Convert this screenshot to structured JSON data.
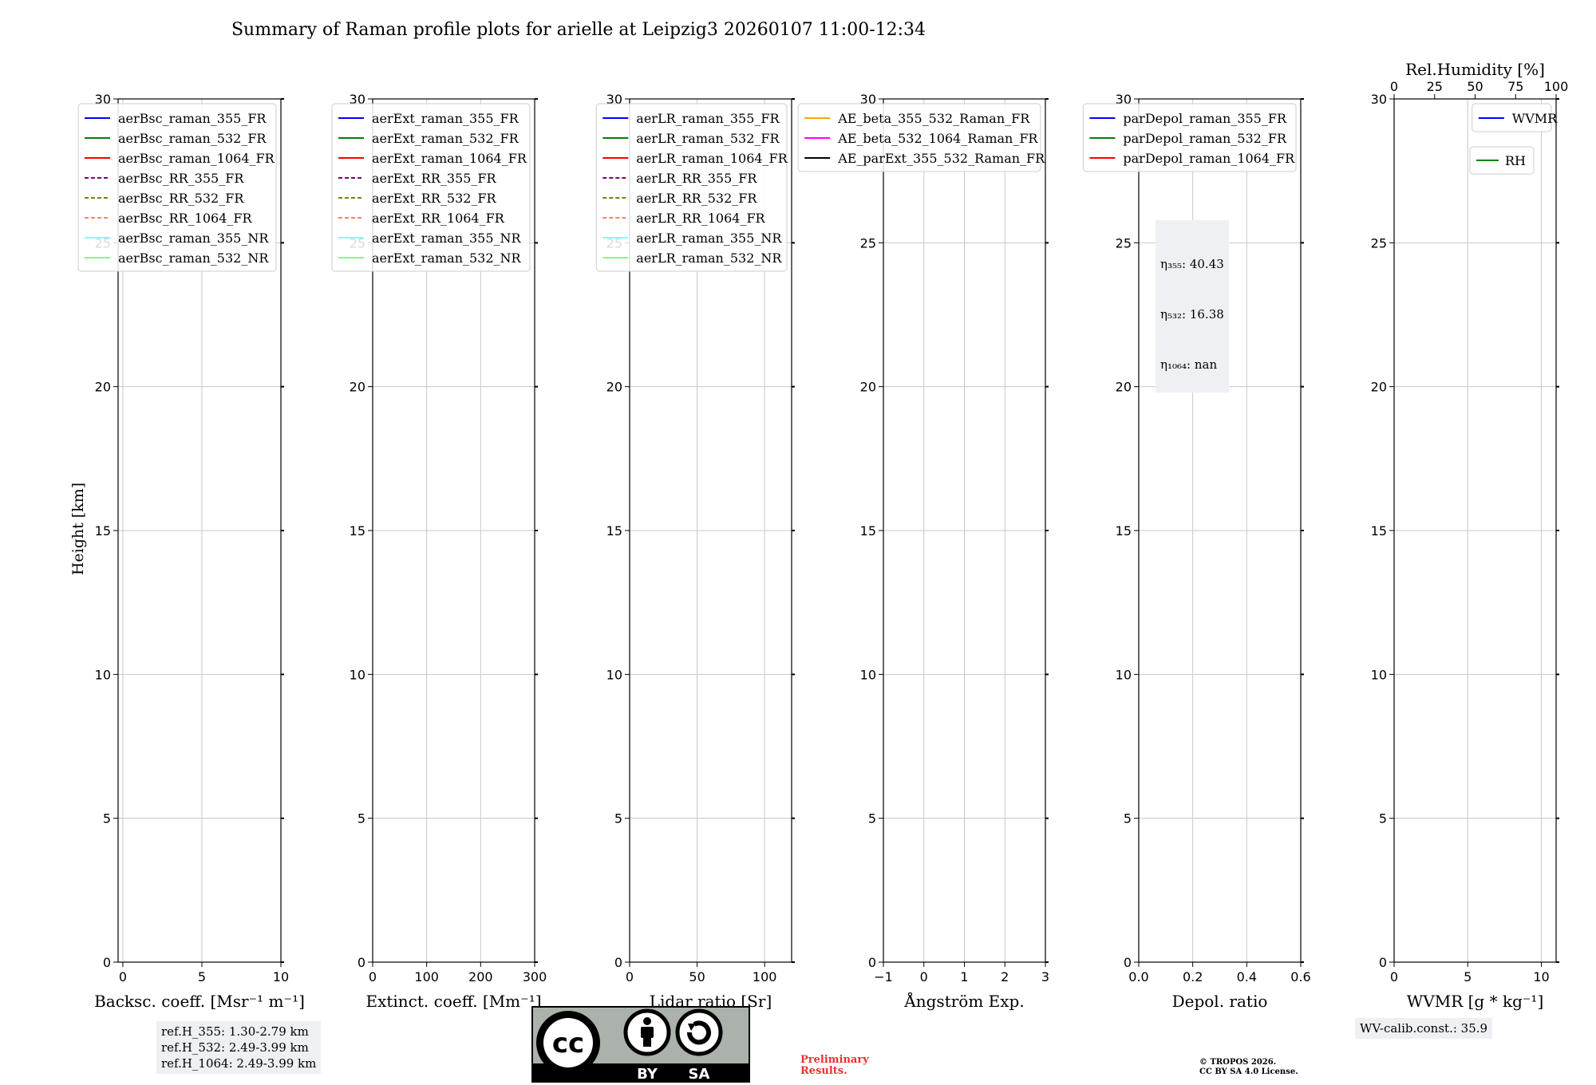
{
  "title": "Summary of Raman profile plots for arielle at Leipzig3 20260107 11:00-12:34",
  "colors": {
    "blue": "#0000ff",
    "green": "#008000",
    "red": "#ff0000",
    "purple": "#800080",
    "olive": "#808000",
    "salmon": "#fa8072",
    "cyan": "#7fffff",
    "lightgreen": "#7fff7f",
    "orange": "#ffa500",
    "magenta": "#ff00ff",
    "black": "#000000",
    "grid": "#c8c8c8"
  },
  "chart_data": [
    {
      "type": "line",
      "id": "bsc",
      "xlabel": "Backsc. coeff. [Msr⁻¹ m⁻¹]",
      "ylabel": "Height [km]",
      "xlim": [
        -0.3,
        10
      ],
      "ylim": [
        0,
        30
      ],
      "xticks": [
        0,
        5,
        10
      ],
      "yticks": [
        0,
        5,
        10,
        15,
        20,
        25,
        30
      ],
      "legend": [
        "aerBsc_raman_355_FR",
        "aerBsc_raman_532_FR",
        "aerBsc_raman_1064_FR",
        "aerBsc_RR_355_FR",
        "aerBsc_RR_532_FR",
        "aerBsc_RR_1064_FR",
        "aerBsc_raman_355_NR",
        "aerBsc_raman_532_NR"
      ],
      "legend_colors": [
        "blue",
        "green",
        "red",
        "purple",
        "olive",
        "salmon",
        "cyan",
        "lightgreen"
      ],
      "legend_dashed": [
        false,
        false,
        false,
        true,
        true,
        true,
        false,
        false
      ],
      "legend_loc": "upper-right"
    },
    {
      "type": "line",
      "id": "ext",
      "xlabel": "Extinct. coeff. [Mm⁻¹]",
      "xlim": [
        0,
        300
      ],
      "ylim": [
        0,
        30
      ],
      "xticks": [
        0,
        100,
        200,
        300
      ],
      "yticks": [
        0,
        5,
        10,
        15,
        20,
        25,
        30
      ],
      "legend": [
        "aerExt_raman_355_FR",
        "aerExt_raman_532_FR",
        "aerExt_raman_1064_FR",
        "aerExt_RR_355_FR",
        "aerExt_RR_532_FR",
        "aerExt_RR_1064_FR",
        "aerExt_raman_355_NR",
        "aerExt_raman_532_NR"
      ],
      "legend_colors": [
        "blue",
        "green",
        "red",
        "purple",
        "olive",
        "salmon",
        "cyan",
        "lightgreen"
      ],
      "legend_dashed": [
        false,
        false,
        false,
        true,
        true,
        true,
        false,
        false
      ],
      "legend_loc": "upper-right"
    },
    {
      "type": "line",
      "id": "lr",
      "xlabel": "Lidar ratio [Sr]",
      "xlim": [
        0,
        120
      ],
      "ylim": [
        0,
        30
      ],
      "xticks": [
        0,
        50,
        100
      ],
      "yticks": [
        0,
        5,
        10,
        15,
        20,
        25,
        30
      ],
      "legend": [
        "aerLR_raman_355_FR",
        "aerLR_raman_532_FR",
        "aerLR_raman_1064_FR",
        "aerLR_RR_355_FR",
        "aerLR_RR_532_FR",
        "aerLR_RR_1064_FR",
        "aerLR_raman_355_NR",
        "aerLR_raman_532_NR"
      ],
      "legend_colors": [
        "blue",
        "green",
        "red",
        "purple",
        "olive",
        "salmon",
        "cyan",
        "lightgreen"
      ],
      "legend_dashed": [
        false,
        false,
        false,
        true,
        true,
        true,
        false,
        false
      ],
      "legend_loc": "upper-right"
    },
    {
      "type": "line",
      "id": "ae",
      "xlabel": "Ångström Exp.",
      "xlim": [
        -1,
        3
      ],
      "ylim": [
        0,
        30
      ],
      "xticks": [
        -1,
        0,
        1,
        2,
        3
      ],
      "yticks": [
        0,
        5,
        10,
        15,
        20,
        25,
        30
      ],
      "legend": [
        "AE_beta_355_532_Raman_FR",
        "AE_beta_532_1064_Raman_FR",
        "AE_parExt_355_532_Raman_FR"
      ],
      "legend_colors": [
        "orange",
        "magenta",
        "black"
      ],
      "legend_dashed": [
        false,
        false,
        false
      ],
      "legend_loc": "upper-right"
    },
    {
      "type": "line",
      "id": "dep",
      "xlabel": "Depol. ratio",
      "xlim": [
        0,
        0.6
      ],
      "ylim": [
        0,
        30
      ],
      "xticks": [
        0,
        0.2,
        0.4,
        0.6
      ],
      "xtick_labels": [
        "0.0",
        "0.2",
        "0.4",
        "0.6"
      ],
      "yticks": [
        0,
        5,
        10,
        15,
        20,
        25,
        30
      ],
      "legend": [
        "parDepol_raman_355_FR",
        "parDepol_raman_532_FR",
        "parDepol_raman_1064_FR"
      ],
      "legend_colors": [
        "blue",
        "green",
        "red"
      ],
      "legend_dashed": [
        false,
        false,
        false
      ],
      "legend_loc": "upper-right"
    },
    {
      "type": "line",
      "id": "wv",
      "xlabel": "WVMR [g * kg⁻¹]",
      "top_xlabel": "Rel.Humidity [%]",
      "xlim": [
        0,
        11
      ],
      "ylim": [
        0,
        30
      ],
      "xticks": [
        0,
        5,
        10
      ],
      "top_xlim": [
        0,
        100
      ],
      "top_xticks": [
        0,
        25,
        50,
        75,
        100
      ],
      "yticks": [
        0,
        5,
        10,
        15,
        20,
        25,
        30
      ],
      "legend": [
        "WVMR"
      ],
      "legend_colors": [
        "blue"
      ],
      "legend_dashed": [
        false
      ],
      "legend2": [
        "RH"
      ],
      "legend2_colors": [
        "green"
      ],
      "legend_loc": "upper-right"
    }
  ],
  "annotations": {
    "ref_heights": "ref.H_355: 1.30-2.79 km\nref.H_532: 2.49-3.99 km\nref.H_1064: 2.49-3.99 km",
    "eta": [
      "η₃₅₅: 40.43",
      "η₅₃₂: 16.38",
      "η₁₀₆₄: nan"
    ],
    "wv_calib": "WV-calib.const.: 35.9",
    "preliminary": "Preliminary\nResults.",
    "copyright": "© TROPOS 2026.\nCC BY SA 4.0 License.",
    "license_badge": [
      "cc",
      "BY",
      "SA"
    ]
  }
}
